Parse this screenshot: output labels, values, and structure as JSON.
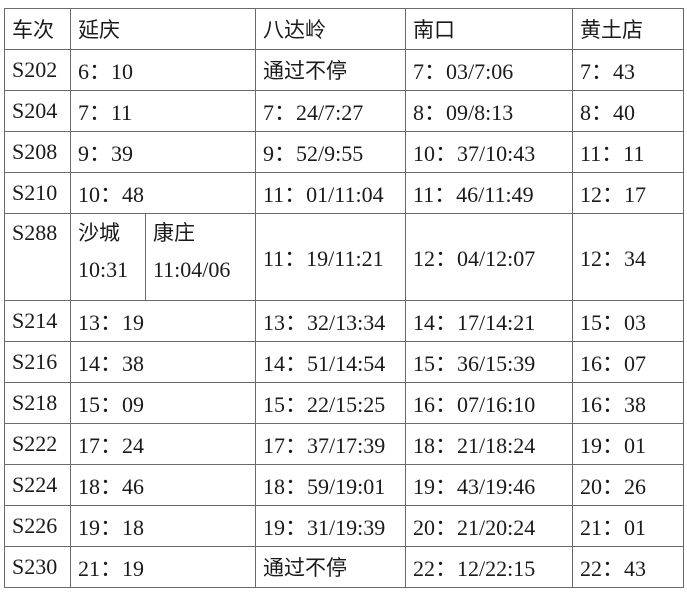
{
  "headers": [
    "车次",
    "延庆",
    "八达岭",
    "南口",
    "黄土店"
  ],
  "rows": [
    {
      "train": "S202",
      "yanqing": "6：10",
      "badaling": "通过不停",
      "nankou": "7：03/7:06",
      "huangtudian": "7：43"
    },
    {
      "train": "S204",
      "yanqing": "7：11",
      "badaling": "7：24/7:27",
      "nankou": "8：09/8:13",
      "huangtudian": "8：40"
    },
    {
      "train": "S208",
      "yanqing": "9：39",
      "badaling": "9：52/9:55",
      "nankou": "10：37/10:43",
      "huangtudian": "11：11"
    },
    {
      "train": "S210",
      "yanqing": "10：48",
      "badaling": "11：01/11:04",
      "nankou": "11：46/11:49",
      "huangtudian": "12：17"
    }
  ],
  "special_row": {
    "train": "S288",
    "station_a": "沙城",
    "time_a": "10:31",
    "station_b": "康庄",
    "time_b": "11:04/06",
    "badaling": "11：19/11:21",
    "nankou": "12：04/12:07",
    "huangtudian": "12：34"
  },
  "rows2": [
    {
      "train": "S214",
      "yanqing": "13：19",
      "badaling": "13：32/13:34",
      "nankou": "14：17/14:21",
      "huangtudian": "15：03"
    },
    {
      "train": "S216",
      "yanqing": "14：38",
      "badaling": "14：51/14:54",
      "nankou": "15：36/15:39",
      "huangtudian": "16：07"
    },
    {
      "train": "S218",
      "yanqing": "15：09",
      "badaling": "15：22/15:25",
      "nankou": "16：07/16:10",
      "huangtudian": "16：38"
    },
    {
      "train": "S222",
      "yanqing": "17：24",
      "badaling": "17：37/17:39",
      "nankou": "18：21/18:24",
      "huangtudian": "19：01"
    },
    {
      "train": "S224",
      "yanqing": "18：46",
      "badaling": "18：59/19:01",
      "nankou": "19：43/19:46",
      "huangtudian": "20：26"
    },
    {
      "train": "S226",
      "yanqing": "19：18",
      "badaling": "19：31/19:39",
      "nankou": "20：21/20:24",
      "huangtudian": "21：01"
    },
    {
      "train": "S230",
      "yanqing": "21：19",
      "badaling": "通过不停",
      "nankou": "22：12/22:15",
      "huangtudian": "22：43"
    }
  ]
}
